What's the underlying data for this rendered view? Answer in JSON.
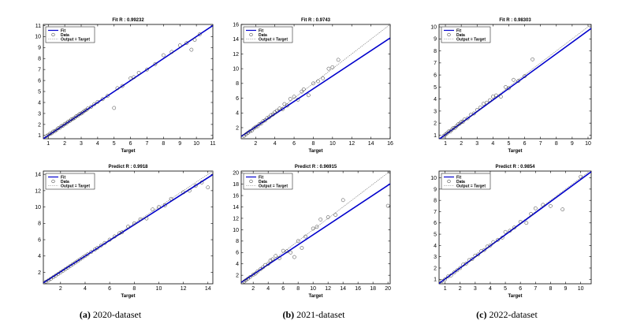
{
  "captions": [
    {
      "label": "(a)",
      "text": "2020-dataset"
    },
    {
      "label": "(b)",
      "text": "2021-dataset"
    },
    {
      "label": "(c)",
      "text": "2022-dataset"
    }
  ],
  "colors": {
    "fit": "#0000cc",
    "identity": "#888888",
    "marker": "#333333"
  },
  "chart_data": [
    {
      "type": "scatter",
      "title": "Fit R : 0.99232",
      "xlabel": "Target",
      "ylabel": "",
      "xlim": [
        0.7,
        11
      ],
      "ylim": [
        0.7,
        11.1
      ],
      "xticks": [
        1,
        2,
        3,
        4,
        5,
        6,
        7,
        8,
        9,
        10,
        11
      ],
      "yticks": [
        1,
        2,
        3,
        4,
        5,
        6,
        7,
        8,
        9,
        10,
        11
      ],
      "legend": [
        "Fit",
        "Data",
        "Output = Target"
      ],
      "fit_line": {
        "slope": 1.0,
        "intercept": 0.0
      },
      "data": {
        "x": [
          0.9,
          1.0,
          1.1,
          1.2,
          1.3,
          1.4,
          1.5,
          1.6,
          1.7,
          1.8,
          1.9,
          2.0,
          2.1,
          2.2,
          2.3,
          2.4,
          2.5,
          2.6,
          2.7,
          2.8,
          2.9,
          3.0,
          3.1,
          3.2,
          3.3,
          3.4,
          3.6,
          3.8,
          4.0,
          4.3,
          4.6,
          5.0,
          5.2,
          5.5,
          6.0,
          6.2,
          6.5,
          7.0,
          7.5,
          8.0,
          8.5,
          9.0,
          9.4,
          9.7,
          9.9,
          10.2
        ],
        "y": [
          0.95,
          1.05,
          1.15,
          1.2,
          1.35,
          1.4,
          1.5,
          1.65,
          1.7,
          1.85,
          1.9,
          2.05,
          2.1,
          2.25,
          2.3,
          2.45,
          2.5,
          2.6,
          2.75,
          2.8,
          2.95,
          3.0,
          3.1,
          3.25,
          3.3,
          3.45,
          3.6,
          3.85,
          4.05,
          4.3,
          4.6,
          3.5,
          5.3,
          5.5,
          6.2,
          6.3,
          6.7,
          7.0,
          7.5,
          8.3,
          8.6,
          9.2,
          9.4,
          8.8,
          9.7,
          10.2
        ]
      }
    },
    {
      "type": "scatter",
      "title": "Fit R : 0.9743",
      "xlabel": "Target",
      "ylabel": "",
      "xlim": [
        0.5,
        16
      ],
      "ylim": [
        0.5,
        16
      ],
      "xticks": [
        2,
        4,
        6,
        8,
        10,
        12,
        14,
        16
      ],
      "yticks": [
        2,
        4,
        6,
        8,
        10,
        12,
        14,
        16
      ],
      "legend": [
        "Fit",
        "Data",
        "Output = Target"
      ],
      "fit_line": {
        "slope": 0.86,
        "intercept": 0.4
      },
      "data": {
        "x": [
          0.8,
          1.0,
          1.2,
          1.4,
          1.6,
          1.8,
          2.0,
          2.2,
          2.4,
          2.6,
          2.8,
          3.0,
          3.2,
          3.4,
          3.6,
          3.8,
          4.0,
          4.2,
          4.5,
          4.8,
          5.0,
          5.3,
          5.6,
          6.0,
          6.4,
          6.8,
          7.0,
          7.5,
          8.0,
          8.5,
          9.0,
          9.6,
          10.0,
          10.6
        ],
        "y": [
          0.9,
          1.1,
          1.3,
          1.5,
          1.6,
          1.9,
          2.1,
          2.2,
          2.5,
          2.6,
          2.9,
          3.0,
          3.3,
          3.4,
          3.7,
          3.8,
          4.1,
          4.3,
          4.6,
          4.5,
          5.2,
          5.0,
          5.9,
          6.2,
          5.8,
          6.9,
          7.2,
          6.4,
          8.0,
          8.3,
          8.7,
          10.0,
          10.2,
          11.2
        ]
      }
    },
    {
      "type": "scatter",
      "title": "Fit R : 0.98303",
      "xlabel": "Target",
      "ylabel": "",
      "xlim": [
        0.6,
        10.2
      ],
      "ylim": [
        0.7,
        10.2
      ],
      "xticks": [
        1,
        2,
        3,
        4,
        5,
        6,
        7,
        8,
        9,
        10
      ],
      "yticks": [
        1,
        2,
        3,
        4,
        5,
        6,
        7,
        8,
        9,
        10
      ],
      "legend": [
        "Fit",
        "Data",
        "Output = Target"
      ],
      "fit_line": {
        "slope": 0.96,
        "intercept": 0.08
      },
      "data": {
        "x": [
          0.9,
          1.0,
          1.1,
          1.2,
          1.3,
          1.4,
          1.5,
          1.6,
          1.7,
          1.8,
          1.9,
          2.0,
          2.1,
          2.2,
          2.4,
          2.6,
          2.8,
          3.0,
          3.2,
          3.4,
          3.6,
          3.8,
          4.0,
          4.2,
          4.5,
          4.8,
          5.0,
          5.3,
          5.6,
          6.0,
          6.5
        ],
        "y": [
          0.95,
          1.05,
          1.15,
          1.3,
          1.3,
          1.45,
          1.6,
          1.6,
          1.75,
          1.9,
          1.95,
          2.1,
          2.1,
          2.3,
          2.4,
          2.7,
          2.8,
          3.1,
          3.3,
          3.6,
          3.7,
          3.9,
          4.2,
          4.3,
          4.2,
          5.0,
          4.9,
          5.6,
          5.5,
          5.9,
          7.3
        ]
      }
    },
    {
      "type": "scatter",
      "title": "Predict R : 0.9918",
      "xlabel": "Target",
      "ylabel": "",
      "xlim": [
        0.6,
        14.4
      ],
      "ylim": [
        0.6,
        14.4
      ],
      "xticks": [
        2,
        4,
        6,
        8,
        10,
        12,
        14
      ],
      "yticks": [
        2,
        4,
        6,
        8,
        10,
        12,
        14
      ],
      "legend": [
        "Fit",
        "Data",
        "Output = Target"
      ],
      "fit_line": {
        "slope": 0.96,
        "intercept": 0.15
      },
      "data": {
        "x": [
          0.8,
          1.0,
          1.2,
          1.4,
          1.6,
          1.8,
          2.0,
          2.2,
          2.4,
          2.6,
          2.8,
          3.0,
          3.2,
          3.4,
          3.6,
          3.8,
          4.0,
          4.2,
          4.5,
          4.8,
          5.0,
          5.3,
          5.6,
          6.0,
          6.4,
          6.8,
          7.0,
          7.5,
          8.0,
          8.5,
          9.0,
          9.5,
          10.0,
          10.5,
          11.0,
          12.0,
          12.5,
          13.0,
          13.5,
          14.0
        ],
        "y": [
          0.85,
          1.0,
          1.2,
          1.4,
          1.6,
          1.8,
          2.0,
          2.2,
          2.4,
          2.6,
          2.8,
          3.0,
          3.2,
          3.4,
          3.6,
          3.8,
          4.0,
          4.2,
          4.5,
          4.8,
          5.0,
          5.3,
          5.6,
          6.0,
          6.4,
          6.8,
          6.9,
          7.6,
          8.0,
          8.5,
          8.6,
          9.7,
          10.0,
          10.2,
          11.0,
          11.8,
          12.0,
          12.6,
          13.0,
          12.4
        ]
      }
    },
    {
      "type": "scatter",
      "title": "Predict R : 0.96915",
      "xlabel": "Target",
      "ylabel": "",
      "xlim": [
        0.4,
        20.3
      ],
      "ylim": [
        0.5,
        20.3
      ],
      "xticks": [
        2,
        4,
        6,
        8,
        10,
        12,
        14,
        16,
        18,
        20
      ],
      "yticks": [
        2,
        4,
        6,
        8,
        10,
        12,
        14,
        16,
        18,
        20
      ],
      "legend": [
        "Fit",
        "Data",
        "Output = Target"
      ],
      "fit_line": {
        "slope": 0.87,
        "intercept": 0.4
      },
      "data": {
        "x": [
          0.8,
          1.0,
          1.3,
          1.6,
          2.0,
          2.3,
          2.6,
          3.0,
          3.3,
          3.6,
          4.0,
          4.3,
          4.6,
          5.0,
          5.5,
          6.0,
          6.5,
          7.0,
          7.5,
          8.0,
          8.5,
          9.0,
          10.0,
          10.5,
          11.0,
          12.0,
          13.0,
          14.0,
          20.0
        ],
        "y": [
          0.9,
          1.1,
          1.4,
          1.7,
          2.1,
          2.3,
          2.7,
          3.1,
          3.4,
          3.8,
          4.0,
          4.6,
          4.8,
          5.4,
          5.0,
          6.3,
          6.2,
          6.0,
          5.2,
          8.0,
          6.8,
          8.8,
          10.2,
          10.5,
          11.8,
          12.2,
          12.6,
          15.2,
          14.2
        ]
      }
    },
    {
      "type": "scatter",
      "title": "Predict R : 0.9854",
      "xlabel": "Target",
      "ylabel": "",
      "xlim": [
        0.6,
        10.7
      ],
      "ylim": [
        0.6,
        10.6
      ],
      "xticks": [
        1,
        2,
        3,
        4,
        5,
        6,
        7,
        8,
        9,
        10
      ],
      "yticks": [
        1,
        2,
        3,
        4,
        5,
        6,
        7,
        8,
        9,
        10
      ],
      "legend": [
        "Fit",
        "Data",
        "Output = Target"
      ],
      "fit_line": {
        "slope": 0.98,
        "intercept": 0.05
      },
      "data": {
        "x": [
          0.8,
          1.0,
          1.2,
          1.4,
          1.6,
          1.8,
          2.0,
          2.2,
          2.4,
          2.6,
          2.8,
          3.0,
          3.2,
          3.4,
          3.6,
          3.8,
          4.0,
          4.2,
          4.5,
          4.8,
          5.0,
          5.3,
          5.6,
          6.0,
          6.4,
          6.7,
          7.0,
          7.5,
          8.0,
          8.8,
          10.0
        ],
        "y": [
          0.85,
          1.0,
          1.25,
          1.35,
          1.6,
          1.8,
          2.0,
          2.3,
          2.4,
          2.7,
          2.8,
          3.1,
          3.2,
          3.5,
          3.6,
          3.9,
          4.0,
          4.3,
          4.5,
          4.7,
          5.2,
          5.3,
          5.6,
          6.1,
          6.0,
          6.8,
          7.3,
          7.6,
          7.5,
          7.2,
          10.1
        ]
      }
    }
  ]
}
